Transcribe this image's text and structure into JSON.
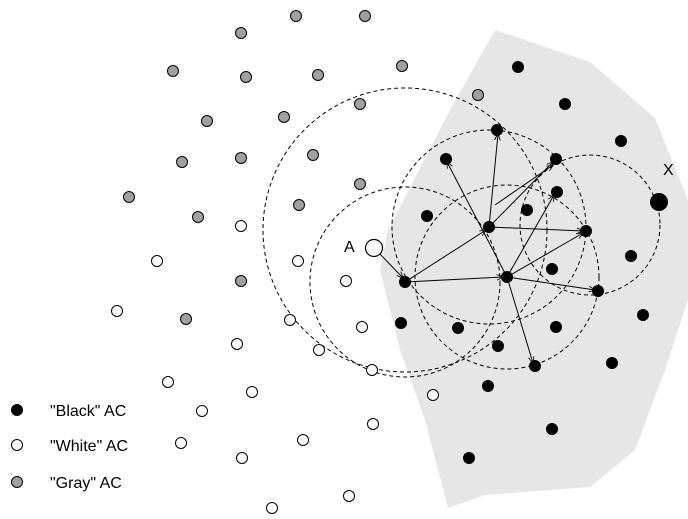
{
  "labels": {
    "node_a": "A",
    "node_x": "X"
  },
  "legend": {
    "items": [
      {
        "label": "\"Black\" AC",
        "fill": "#000000"
      },
      {
        "label": "\"White\" AC",
        "fill": "#ffffff"
      },
      {
        "label": "\"Gray\" AC",
        "fill": "#a0a0a0"
      }
    ]
  },
  "colors": {
    "black_ac": "#000000",
    "white_ac": "#ffffff",
    "gray_ac": "#a0a0a0",
    "region_fill": "#e6e6e6"
  }
}
